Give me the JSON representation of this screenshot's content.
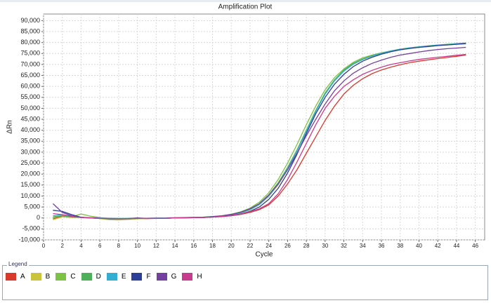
{
  "legend_title": "Legend",
  "chart_data": {
    "type": "line",
    "title": "Amplification Plot",
    "x_label": "Cycle",
    "y_label": "ΔRn",
    "xlim": [
      0,
      47
    ],
    "ylim": [
      -10000,
      93000
    ],
    "xticks": [
      0,
      2,
      4,
      6,
      8,
      10,
      12,
      14,
      16,
      18,
      20,
      22,
      24,
      26,
      28,
      30,
      32,
      34,
      36,
      38,
      40,
      42,
      44,
      46
    ],
    "yticks": [
      {
        "value": -10000,
        "label": "-10,000"
      },
      {
        "value": -5000,
        "label": "-5,000"
      },
      0,
      {
        "value": 5000,
        "label": "5,000"
      },
      {
        "value": 10000,
        "label": "10,000"
      },
      {
        "value": 15000,
        "label": "15,000"
      },
      {
        "value": 20000,
        "label": "20,000"
      },
      {
        "value": 25000,
        "label": "25,000"
      },
      {
        "value": 30000,
        "label": "30,000"
      },
      {
        "value": 35000,
        "label": "35,000"
      },
      {
        "value": 40000,
        "label": "40,000"
      },
      {
        "value": 45000,
        "label": "45,000"
      },
      {
        "value": 50000,
        "label": "50,000"
      },
      {
        "value": 55000,
        "label": "55,000"
      },
      {
        "value": 60000,
        "label": "60,000"
      },
      {
        "value": 65000,
        "label": "65,000"
      },
      {
        "value": 70000,
        "label": "70,000"
      },
      {
        "value": 75000,
        "label": "75,000"
      },
      {
        "value": 80000,
        "label": "80,000"
      },
      {
        "value": 85000,
        "label": "85,000"
      },
      {
        "value": 90000,
        "label": "90,000"
      }
    ],
    "grid": true,
    "x": [
      1,
      2,
      3,
      4,
      5,
      6,
      7,
      8,
      9,
      10,
      11,
      12,
      13,
      14,
      15,
      16,
      17,
      18,
      19,
      20,
      21,
      22,
      23,
      24,
      25,
      26,
      27,
      28,
      29,
      30,
      31,
      32,
      33,
      34,
      35,
      36,
      37,
      38,
      39,
      40,
      41,
      42,
      43,
      44,
      45
    ],
    "series": [
      {
        "name": "A",
        "color": "#d8392b",
        "values": [
          -500,
          800,
          600,
          300,
          0,
          -200,
          -300,
          -400,
          -600,
          -300,
          -300,
          -200,
          -200,
          0,
          0,
          100,
          200,
          400,
          600,
          1000,
          1600,
          2500,
          3800,
          6000,
          10000,
          15500,
          22000,
          29500,
          37000,
          44500,
          51000,
          56500,
          60500,
          63500,
          65800,
          67500,
          68800,
          69900,
          70800,
          71500,
          72100,
          72700,
          73200,
          73700,
          74300
        ]
      },
      {
        "name": "B",
        "color": "#c9c43a",
        "values": [
          -800,
          500,
          200,
          300,
          100,
          -300,
          -800,
          -900,
          -700,
          -400,
          -200,
          -200,
          -100,
          0,
          100,
          300,
          300,
          500,
          800,
          1300,
          2200,
          3600,
          6000,
          9800,
          15000,
          22000,
          30500,
          39500,
          48500,
          56500,
          62500,
          67000,
          70000,
          72200,
          73700,
          74900,
          75900,
          76700,
          77300,
          77800,
          78200,
          78600,
          78900,
          79200,
          79400
        ]
      },
      {
        "name": "C",
        "color": "#7cc243",
        "values": [
          0,
          1200,
          500,
          1800,
          800,
          200,
          -600,
          -800,
          -600,
          -300,
          -200,
          -200,
          -100,
          0,
          100,
          300,
          400,
          700,
          1000,
          1700,
          2800,
          4500,
          7200,
          11500,
          17500,
          25000,
          33500,
          42500,
          51000,
          58500,
          64000,
          68000,
          71000,
          73000,
          74300,
          75300,
          76100,
          76800,
          77400,
          77900,
          78300,
          78700,
          79000,
          79300,
          79600
        ]
      },
      {
        "name": "D",
        "color": "#4fb05a",
        "values": [
          500,
          1000,
          400,
          200,
          100,
          0,
          -200,
          -300,
          -200,
          -100,
          -200,
          -100,
          0,
          100,
          200,
          300,
          300,
          600,
          900,
          1500,
          2500,
          4000,
          6500,
          10500,
          16000,
          23000,
          31000,
          40000,
          49000,
          57000,
          63000,
          67500,
          70500,
          72500,
          74000,
          75200,
          76200,
          77000,
          77600,
          78100,
          78500,
          78900,
          79200,
          79500,
          79800
        ]
      },
      {
        "name": "E",
        "color": "#33aed3",
        "values": [
          1000,
          1500,
          800,
          300,
          100,
          0,
          -100,
          -200,
          -200,
          -100,
          -100,
          0,
          0,
          100,
          100,
          200,
          300,
          600,
          900,
          1400,
          2300,
          3800,
          6200,
          10000,
          15500,
          22500,
          30500,
          39500,
          48500,
          56500,
          62500,
          67000,
          70200,
          72300,
          73900,
          75100,
          76100,
          76900,
          77500,
          78000,
          78400,
          78800,
          79100,
          79400,
          79700
        ]
      },
      {
        "name": "F",
        "color": "#2c3f98",
        "values": [
          3500,
          3000,
          1500,
          300,
          0,
          -200,
          -300,
          -300,
          -300,
          0,
          -200,
          -200,
          -100,
          0,
          100,
          100,
          200,
          400,
          700,
          1100,
          1800,
          3000,
          5000,
          8500,
          13500,
          20500,
          29000,
          38500,
          47500,
          55000,
          61000,
          65500,
          69000,
          71500,
          73300,
          74700,
          75800,
          76700,
          77300,
          77800,
          78200,
          78600,
          78900,
          79200,
          79500
        ]
      },
      {
        "name": "G",
        "color": "#7340a0",
        "values": [
          6500,
          2500,
          1000,
          200,
          0,
          -100,
          -300,
          -300,
          -300,
          -100,
          -200,
          -200,
          -100,
          0,
          100,
          200,
          300,
          600,
          1000,
          1600,
          2600,
          4200,
          6500,
          10500,
          15500,
          22000,
          29500,
          37500,
          45000,
          52000,
          58000,
          62500,
          66000,
          68500,
          70500,
          72000,
          73300,
          74300,
          75000,
          75700,
          76300,
          76800,
          77200,
          77500,
          77800
        ]
      },
      {
        "name": "H",
        "color": "#c93b8e",
        "values": [
          2000,
          1500,
          700,
          200,
          0,
          -200,
          -200,
          -300,
          -300,
          -200,
          -200,
          -100,
          -100,
          0,
          0,
          100,
          200,
          400,
          700,
          1100,
          1800,
          2800,
          4200,
          6500,
          11000,
          17500,
          25500,
          34000,
          42500,
          50000,
          55500,
          60000,
          63000,
          65500,
          67300,
          68800,
          70000,
          70800,
          71600,
          72300,
          72800,
          73300,
          73700,
          74200,
          74600
        ]
      }
    ]
  }
}
